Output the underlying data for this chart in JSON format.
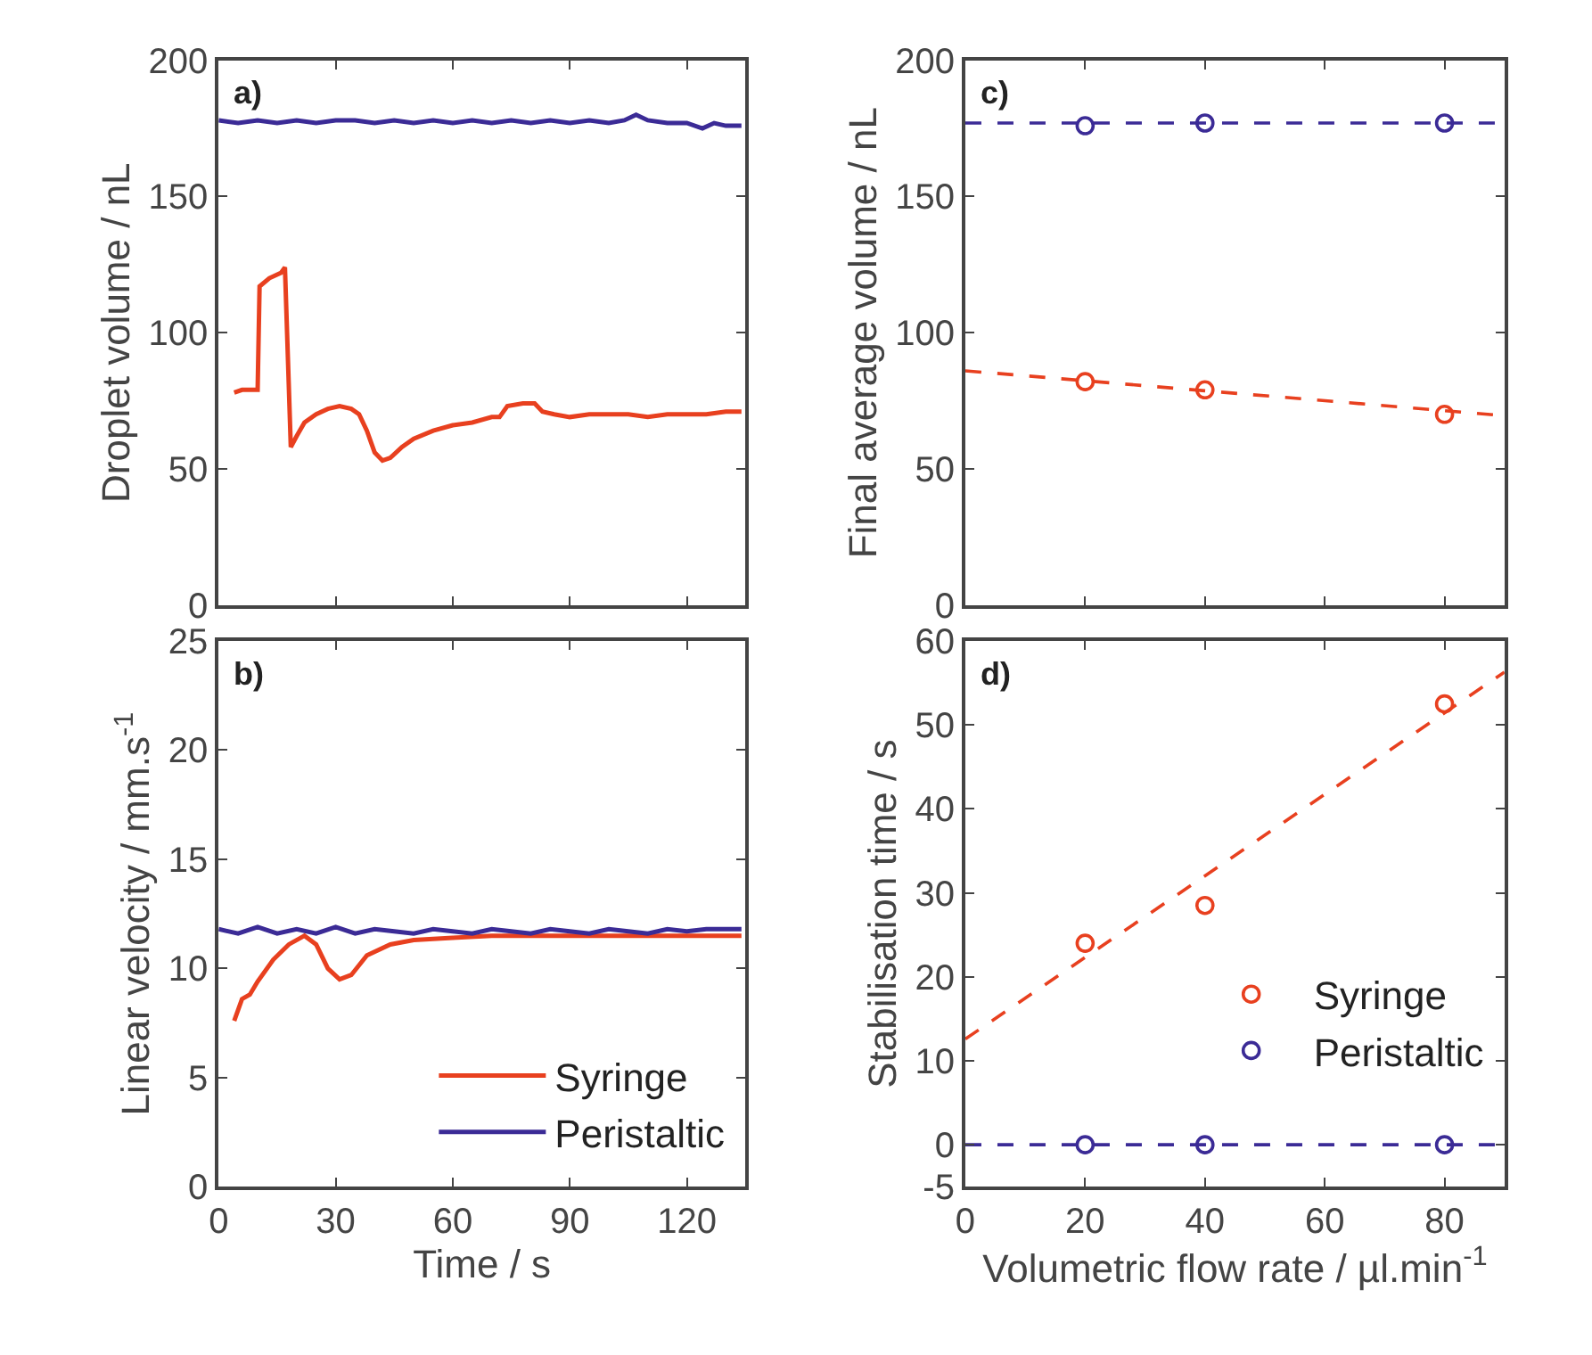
{
  "chart_data": [
    {
      "type": "line",
      "ylabel": "Droplet volume / nL",
      "annotations": [
        "a)"
      ],
      "xlim": [
        0,
        135
      ],
      "xticks": [
        0,
        30,
        60,
        90,
        120
      ],
      "ylim": [
        0,
        200
      ],
      "yticks": [
        0,
        50,
        100,
        150,
        200
      ],
      "tick_labels": "y",
      "legend": false,
      "series": [
        {
          "color": "#e8401f",
          "x": [
            4,
            6,
            8,
            10,
            10.5,
            13,
            16,
            17,
            18.5,
            20,
            22,
            25,
            28,
            31,
            34,
            36,
            38,
            40,
            42,
            44,
            47,
            50,
            55,
            60,
            65,
            70,
            72,
            74,
            78,
            81,
            83,
            86,
            90,
            95,
            100,
            105,
            110,
            115,
            120,
            125,
            130,
            134
          ],
          "values": [
            78,
            79,
            79,
            79,
            117,
            120,
            122,
            124,
            58,
            62,
            67,
            70,
            72,
            73,
            72,
            70,
            64,
            56,
            53,
            54,
            58,
            61,
            64,
            66,
            67,
            69,
            69,
            73,
            74,
            74,
            71,
            70,
            69,
            70,
            70,
            70,
            69,
            70,
            70,
            70,
            71,
            71
          ]
        },
        {
          "color": "#3b2b96",
          "x": [
            0,
            5,
            10,
            15,
            20,
            25,
            30,
            35,
            40,
            45,
            50,
            55,
            60,
            65,
            70,
            75,
            80,
            85,
            90,
            95,
            100,
            104,
            107,
            110,
            115,
            120,
            124,
            127,
            130,
            134
          ],
          "values": [
            178,
            177,
            178,
            177,
            178,
            177,
            178,
            178,
            177,
            178,
            177,
            178,
            177,
            178,
            177,
            178,
            177,
            178,
            177,
            178,
            177,
            178,
            180,
            178,
            177,
            177,
            175,
            177,
            176,
            176
          ]
        }
      ]
    },
    {
      "type": "line",
      "xlabel": "Time / s",
      "ylabel": "Linear velocity / mm.s$^{-1}$",
      "annotations": [
        "b)"
      ],
      "xlim": [
        0,
        135
      ],
      "xticks": [
        0,
        30,
        60,
        90,
        120
      ],
      "ylim": [
        0,
        25
      ],
      "yticks": [
        0,
        5,
        10,
        15,
        20,
        25
      ],
      "legend": "bottom right",
      "series": [
        {
          "name": "Syringe",
          "color": "#e8401f",
          "x": [
            4,
            6,
            8,
            10,
            14,
            18,
            22,
            25,
            28,
            31,
            34,
            38,
            44,
            50,
            60,
            70,
            80,
            90,
            100,
            110,
            120,
            134
          ],
          "values": [
            7.6,
            8.6,
            8.8,
            9.4,
            10.4,
            11.1,
            11.5,
            11.1,
            10.0,
            9.5,
            9.7,
            10.6,
            11.1,
            11.3,
            11.4,
            11.5,
            11.5,
            11.5,
            11.5,
            11.5,
            11.5,
            11.5
          ]
        },
        {
          "name": "Peristaltic",
          "color": "#3b2b96",
          "x": [
            0,
            5,
            10,
            15,
            20,
            25,
            30,
            35,
            40,
            45,
            50,
            55,
            60,
            65,
            70,
            75,
            80,
            85,
            90,
            95,
            100,
            105,
            110,
            115,
            120,
            125,
            130,
            134
          ],
          "values": [
            11.8,
            11.6,
            11.9,
            11.6,
            11.8,
            11.6,
            11.9,
            11.6,
            11.8,
            11.7,
            11.6,
            11.8,
            11.7,
            11.6,
            11.8,
            11.7,
            11.6,
            11.8,
            11.7,
            11.6,
            11.8,
            11.7,
            11.6,
            11.8,
            11.7,
            11.8,
            11.8,
            11.8
          ]
        }
      ]
    },
    {
      "type": "scatter",
      "ylabel": "Final average volume / nL",
      "annotations": [
        "c)"
      ],
      "xlim": [
        0,
        90
      ],
      "xticks": [
        0,
        20,
        40,
        60,
        80
      ],
      "ylim": [
        0,
        200
      ],
      "yticks": [
        0,
        50,
        100,
        150,
        200
      ],
      "tick_labels": "y",
      "legend": false,
      "series": [
        {
          "color": "#e8401f",
          "marker": "circle",
          "x": [
            20,
            40,
            80
          ],
          "values": [
            82,
            79,
            70
          ]
        },
        {
          "color": "#3b2b96",
          "marker": "circle",
          "x": [
            20,
            40,
            80
          ],
          "values": [
            176,
            177,
            177
          ]
        },
        {
          "type": "line",
          "line_style": "dashed",
          "color": "#e8401f",
          "x": [
            0,
            90
          ],
          "values": [
            86,
            69.5
          ]
        },
        {
          "type": "line",
          "line_style": "dashed",
          "color": "#3b2b96",
          "x": [
            0,
            90
          ],
          "values": [
            177,
            177
          ]
        }
      ]
    },
    {
      "type": "scatter",
      "xlabel": "Volumetric flow rate / µl.min$^{-1}$",
      "ylabel": "Stabilisation time / s",
      "annotations": [
        "d)"
      ],
      "xlim": [
        0,
        90
      ],
      "xticks": [
        0,
        20,
        40,
        60,
        80
      ],
      "ylim": [
        -5,
        60
      ],
      "yticks": [
        -5,
        0,
        10,
        20,
        30,
        40,
        50,
        60
      ],
      "legend": "right",
      "series": [
        {
          "name": "Syringe",
          "color": "#e8401f",
          "marker": "circle",
          "x": [
            20,
            40,
            80
          ],
          "values": [
            24,
            28.5,
            52.5
          ]
        },
        {
          "name": "Peristaltic",
          "color": "#3b2b96",
          "marker": "circle",
          "x": [
            20,
            40,
            80
          ],
          "values": [
            0,
            0,
            0
          ]
        },
        {
          "type": "line",
          "line_style": "dashed",
          "color": "#e8401f",
          "x": [
            0,
            90
          ],
          "values": [
            12.6,
            56.3
          ]
        },
        {
          "type": "line",
          "line_style": "dashed",
          "color": "#3b2b96",
          "x": [
            0,
            90
          ],
          "values": [
            0,
            0
          ]
        }
      ]
    }
  ]
}
